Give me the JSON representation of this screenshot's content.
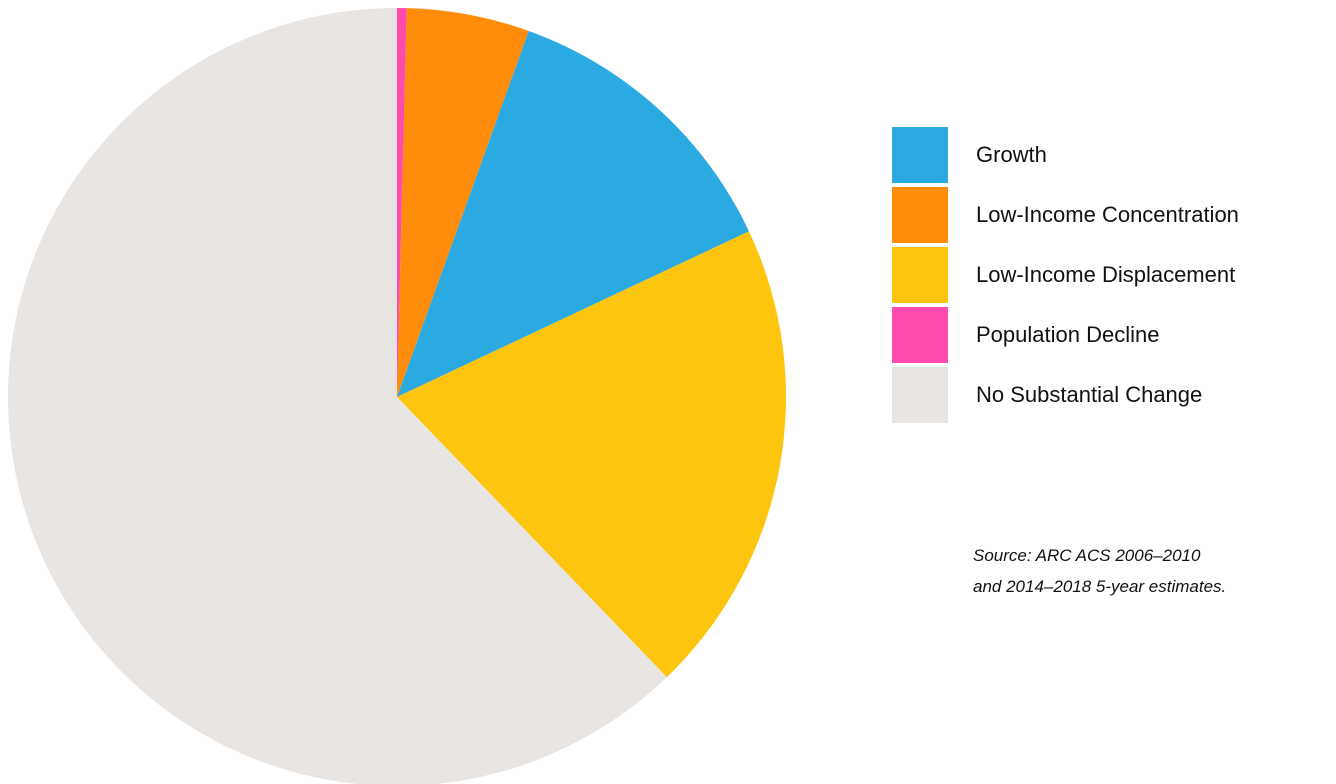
{
  "chart_data": {
    "type": "pie",
    "title": "",
    "start_angle_deg": 0,
    "direction": "clockwise",
    "slices": [
      {
        "label": "Population Decline",
        "value": 0.4,
        "color": "#FF4AAE"
      },
      {
        "label": "Low-Income Concentration",
        "value": 5.1,
        "color": "#FF8C0A"
      },
      {
        "label": "Growth",
        "value": 12.5,
        "color": "#2BAAE2"
      },
      {
        "label": "Low-Income Displacement",
        "value": 19.8,
        "color": "#FEC50F"
      },
      {
        "label": "No Substantial Change",
        "value": 62.2,
        "color": "#E9E5E2"
      }
    ],
    "legend": {
      "placement": "right",
      "entries": [
        {
          "label": "Growth",
          "color": "#2BAAE2"
        },
        {
          "label": "Low-Income Concentration",
          "color": "#FF8C0A"
        },
        {
          "label": "Low-Income Displacement",
          "color": "#FEC50F"
        },
        {
          "label": "Population Decline",
          "color": "#FF4AAE"
        },
        {
          "label": "No Substantial Change",
          "color": "#E9E5E2"
        }
      ]
    }
  },
  "source": {
    "line1": "Source: ARC ACS 2006–2010",
    "line2": "and 2014–2018 5-year estimates."
  }
}
